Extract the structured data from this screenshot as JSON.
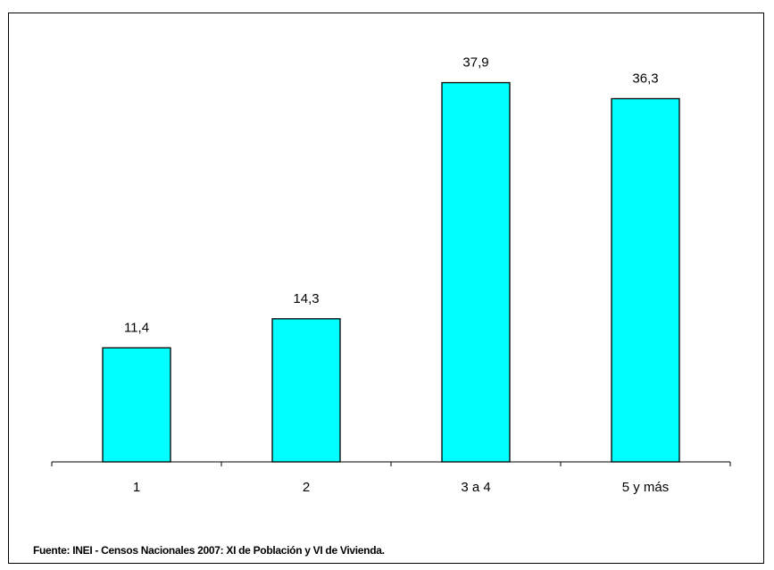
{
  "chart_data": {
    "type": "bar",
    "title": "",
    "xlabel": "",
    "ylabel": "",
    "categories": [
      "1",
      "2",
      "3 a 4",
      "5 y más"
    ],
    "values": [
      11.4,
      14.3,
      37.9,
      36.3
    ],
    "value_labels": [
      "11,4",
      "14,3",
      "37,9",
      "36,3"
    ],
    "ylim": [
      0,
      40
    ],
    "grid": false,
    "legend": "none",
    "bar_color": "#00FFFF",
    "bar_border_color": "#000000"
  },
  "source_note": "Fuente: INEI - Censos Nacionales 2007: XI de Población y VI de Vivienda."
}
